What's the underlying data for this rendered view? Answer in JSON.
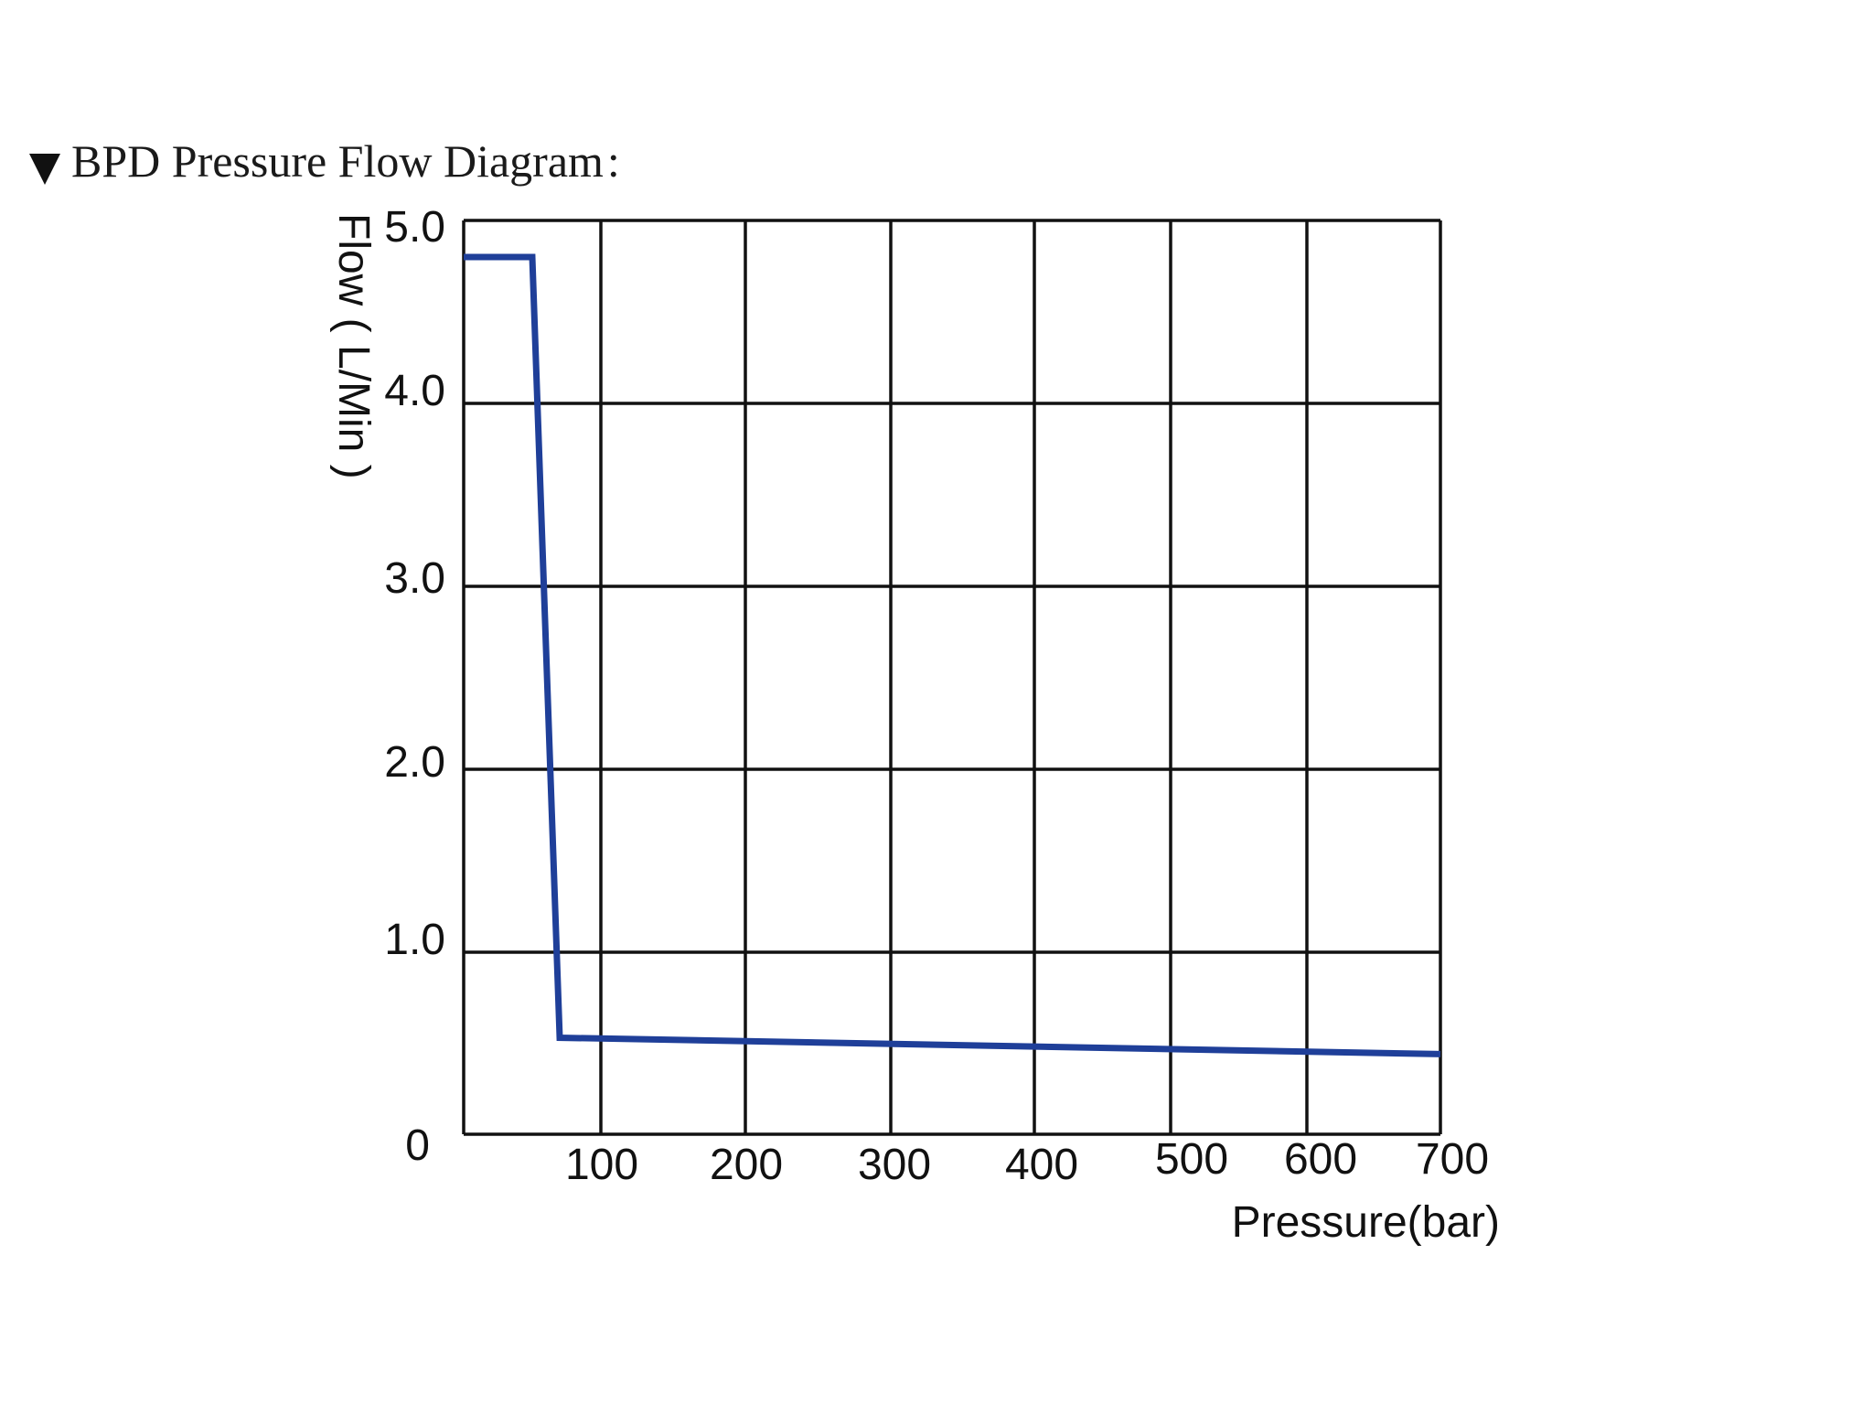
{
  "header": {
    "marker_icon": "triangle-down-icon",
    "title": "BPD Pressure Flow Diagram",
    "title_suffix": ":"
  },
  "chart_data": {
    "type": "line",
    "title": "BPD Pressure Flow Diagram",
    "xlabel": "Pressure(bar)",
    "ylabel": "Flow ( L/Min )",
    "xlim": [
      0,
      700
    ],
    "ylim": [
      0,
      5.0
    ],
    "grid": true,
    "x_ticks": [
      "100",
      "200",
      "300",
      "400",
      "500",
      "600",
      "700"
    ],
    "y_ticks": [
      "0",
      "1.0",
      "2.0",
      "3.0",
      "4.0",
      "5.0"
    ],
    "series": [
      {
        "color": "#1f3f99",
        "x": [
          0,
          50,
          70,
          700
        ],
        "y": [
          4.8,
          4.8,
          0.53,
          0.44
        ]
      }
    ]
  }
}
